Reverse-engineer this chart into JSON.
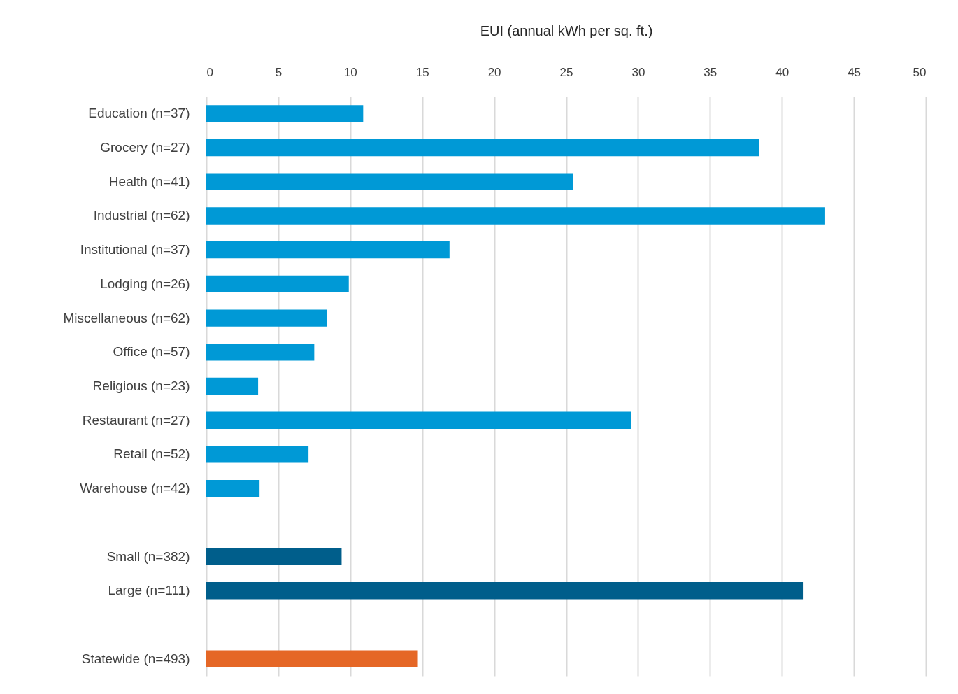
{
  "chart_data": {
    "type": "bar",
    "orientation": "horizontal",
    "xlabel": "EUI (annual kWh per sq. ft.)",
    "categories": [
      "Education (n=37)",
      "Grocery (n=27)",
      "Health (n=41)",
      "Industrial (n=62)",
      "Institutional (n=37)",
      "Lodging (n=26)",
      "Miscellaneous (n=62)",
      "Office (n=57)",
      "Religious (n=23)",
      "Restaurant (n=27)",
      "Retail (n=52)",
      "Warehouse (n=42)",
      null,
      "Small (n=382)",
      "Large (n=111)",
      null,
      "Statewide (n=493)"
    ],
    "values": [
      10.9,
      38.4,
      25.5,
      43.0,
      16.9,
      9.9,
      8.4,
      7.5,
      3.6,
      29.5,
      7.1,
      3.7,
      null,
      9.4,
      41.5,
      null,
      14.7
    ],
    "colors": [
      "#0099d6",
      "#0099d6",
      "#0099d6",
      "#0099d6",
      "#0099d6",
      "#0099d6",
      "#0099d6",
      "#0099d6",
      "#0099d6",
      "#0099d6",
      "#0099d6",
      "#0099d6",
      null,
      "#005e8b",
      "#005e8b",
      null,
      "#e56726"
    ],
    "xlim": [
      0,
      50
    ],
    "xticks": [
      0,
      5,
      10,
      15,
      20,
      25,
      30,
      35,
      40,
      45,
      50
    ],
    "grid": "x"
  }
}
